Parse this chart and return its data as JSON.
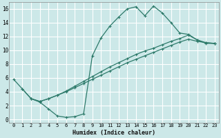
{
  "bg_color": "#cce8e8",
  "grid_color": "#ffffff",
  "line_color": "#2d7a6a",
  "xlabel": "Humidex (Indice chaleur)",
  "xlim": [
    -0.5,
    23.5
  ],
  "ylim": [
    -0.5,
    17.0
  ],
  "xticks": [
    0,
    1,
    2,
    3,
    4,
    5,
    6,
    7,
    8,
    9,
    10,
    11,
    12,
    13,
    14,
    15,
    16,
    17,
    18,
    19,
    20,
    21,
    22,
    23
  ],
  "yticks": [
    0,
    2,
    4,
    6,
    8,
    10,
    12,
    14,
    16
  ],
  "line1_x": [
    0,
    1,
    2,
    3,
    4,
    5,
    6,
    7,
    8,
    9,
    10,
    11,
    12,
    13,
    14,
    15,
    16,
    17,
    18,
    19,
    20,
    21,
    22,
    23
  ],
  "line1_y": [
    5.8,
    4.4,
    3.0,
    2.5,
    1.5,
    0.5,
    0.3,
    0.4,
    0.8,
    9.2,
    11.8,
    13.5,
    14.8,
    16.0,
    16.3,
    15.0,
    16.4,
    15.4,
    14.0,
    12.5,
    12.3,
    11.5,
    11.0,
    11.0
  ],
  "line2_x": [
    1,
    2,
    3,
    4,
    5,
    6,
    7,
    8,
    9,
    10,
    11,
    12,
    13,
    14,
    15,
    16,
    17,
    18,
    19,
    20,
    21,
    22,
    23
  ],
  "line2_y": [
    4.4,
    3.0,
    2.6,
    3.0,
    3.5,
    4.1,
    4.8,
    5.5,
    6.2,
    6.9,
    7.6,
    8.2,
    8.8,
    9.4,
    9.9,
    10.3,
    10.8,
    11.3,
    11.7,
    12.2,
    11.5,
    11.1,
    11.0
  ],
  "line3_x": [
    2,
    3,
    4,
    5,
    6,
    7,
    8,
    9,
    10,
    11,
    12,
    13,
    14,
    15,
    16,
    17,
    18,
    19,
    20,
    21,
    22,
    23
  ],
  "line3_y": [
    3.0,
    2.6,
    3.0,
    3.5,
    4.0,
    4.6,
    5.2,
    5.8,
    6.4,
    7.0,
    7.6,
    8.2,
    8.7,
    9.2,
    9.7,
    10.2,
    10.7,
    11.2,
    11.6,
    11.3,
    11.1,
    11.0
  ]
}
